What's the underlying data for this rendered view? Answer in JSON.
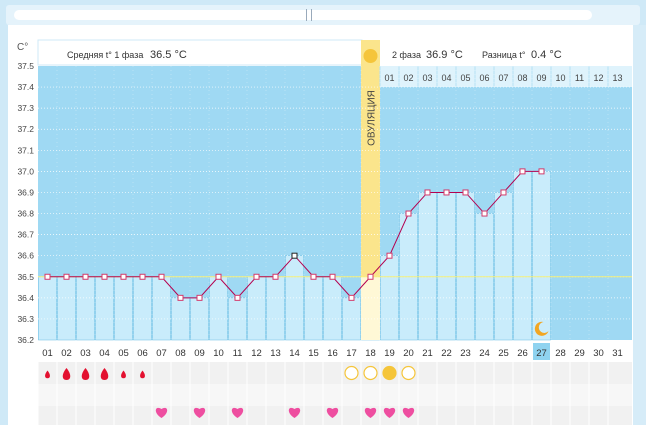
{
  "chart_data": {
    "type": "line",
    "y_unit": "C°",
    "ylim": [
      36.2,
      37.5
    ],
    "y_ticks": [
      "37.5",
      "37.4",
      "37.3",
      "37.2",
      "37.1",
      "37.0",
      "36.9",
      "36.8",
      "36.7",
      "36.6",
      "36.5",
      "36.4",
      "36.3",
      "36.2"
    ],
    "x_days": [
      "01",
      "02",
      "03",
      "04",
      "05",
      "06",
      "07",
      "08",
      "09",
      "10",
      "11",
      "12",
      "13",
      "14",
      "15",
      "16",
      "17",
      "18",
      "19",
      "20",
      "21",
      "22",
      "23",
      "24",
      "25",
      "26",
      "27",
      "28",
      "29",
      "30",
      "31"
    ],
    "phase2_days": [
      "01",
      "02",
      "03",
      "04",
      "05",
      "06",
      "07",
      "08",
      "09",
      "10",
      "11",
      "12",
      "13"
    ],
    "phase1_label": "Средняя t° 1 фаза",
    "phase1_avg": "36.5 °C",
    "phase2_label": "2 фаза",
    "phase2_avg": "36.9 °C",
    "diff_label": "Разница t°",
    "diff_value": "0.4 °C",
    "ovulation_label": "ОВУЛЯЦИЯ",
    "ovulation_day": 18,
    "today_day": 27,
    "coverline": 36.5,
    "series": [
      {
        "values": [
          36.5,
          36.5,
          36.5,
          36.5,
          36.5,
          36.5,
          36.5,
          36.4,
          36.4,
          36.5,
          36.4,
          36.5,
          36.5,
          36.6,
          36.5,
          36.5,
          36.4,
          36.5,
          36.6,
          36.8,
          36.9,
          36.9,
          36.9,
          36.8,
          36.9,
          37.0,
          37.0
        ]
      }
    ],
    "highlighted_point_day": 14,
    "grid": true,
    "colors": {
      "plot_bg": "#9fd9f3",
      "bar_fill": "#c9ecfb",
      "line": "#b4004f",
      "marker": "#d33a6a",
      "ovulation": "#fbe58c",
      "coverline": "#f6f07a",
      "today": "#8fd3f0"
    }
  },
  "symbols": {
    "blood_days": [
      1,
      2,
      3,
      4,
      5,
      6
    ],
    "blood_sizes": [
      "small",
      "large",
      "large",
      "large",
      "small",
      "small"
    ],
    "cervix_days": [
      17,
      18,
      19,
      20
    ],
    "cervix_filled_day": 19,
    "heart_days": [
      7,
      9,
      11,
      14,
      16,
      18,
      19,
      20
    ],
    "moon_day": 27
  },
  "icons": {
    "sun": "sun-icon",
    "moon": "moon-icon",
    "drop": "blood-drop-icon",
    "heart": "heart-icon",
    "circle": "circle-icon"
  }
}
